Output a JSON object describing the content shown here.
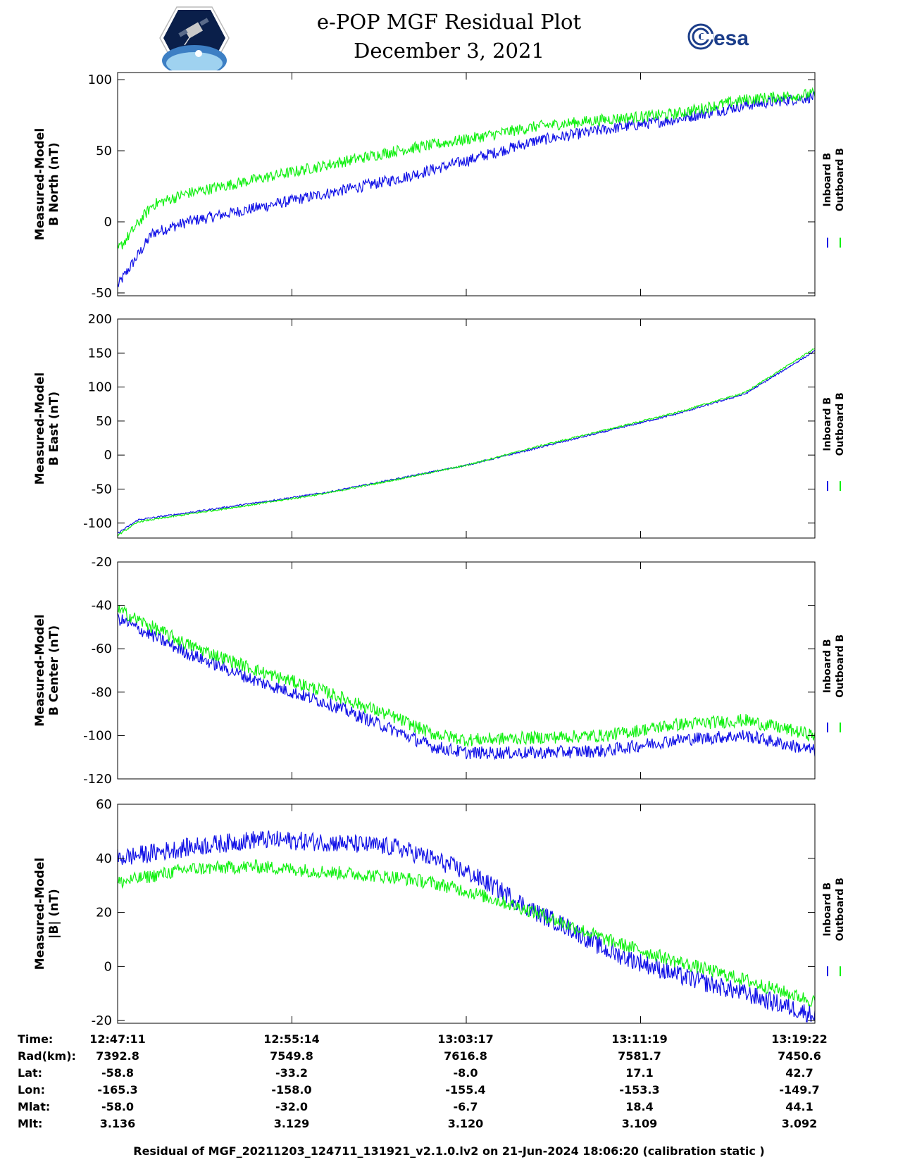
{
  "title": [
    "e-POP MGF Residual Plot",
    "December 3, 2021"
  ],
  "logos": {
    "left": "e-POP CASSIOPE mission logo",
    "right_text": "esa"
  },
  "colors": {
    "inboard": "#1010e6",
    "outboard": "#10f010",
    "axis": "#000000"
  },
  "chart_data": [
    {
      "type": "line",
      "ylabel": [
        "Measured-Model",
        "B North (nT)"
      ],
      "ylim": [
        -52,
        105
      ],
      "yticks": [
        -50,
        0,
        50,
        100
      ],
      "xticks_time": [
        "12:47:11",
        "12:55:14",
        "13:03:17",
        "13:11:19",
        "13:19:22"
      ],
      "legend": [
        "Inboard B",
        "Outboard B"
      ],
      "series": [
        {
          "name": "Inboard B",
          "color": "#1010e6",
          "noise": 4,
          "x": [
            0,
            0.05,
            0.1,
            0.2,
            0.3,
            0.4,
            0.5,
            0.6,
            0.7,
            0.8,
            0.9,
            1.0
          ],
          "y": [
            -45,
            -8,
            0,
            10,
            20,
            30,
            43,
            57,
            65,
            72,
            82,
            88
          ]
        },
        {
          "name": "Outboard B",
          "color": "#10f010",
          "noise": 4,
          "x": [
            0,
            0.05,
            0.1,
            0.2,
            0.3,
            0.4,
            0.5,
            0.6,
            0.7,
            0.8,
            0.9,
            1.0
          ],
          "y": [
            -20,
            12,
            20,
            30,
            40,
            50,
            58,
            67,
            72,
            76,
            86,
            90
          ]
        }
      ]
    },
    {
      "type": "line",
      "ylabel": [
        "Measured-Model",
        "B East (nT)"
      ],
      "ylim": [
        -122,
        200
      ],
      "yticks": [
        -100,
        -50,
        0,
        50,
        100,
        150,
        200
      ],
      "xticks_time": [
        "12:47:11",
        "12:55:14",
        "13:03:17",
        "13:11:19",
        "13:19:22"
      ],
      "legend": [
        "Inboard B",
        "Outboard B"
      ],
      "series": [
        {
          "name": "Inboard B",
          "color": "#1010e6",
          "noise": 1.2,
          "x": [
            0,
            0.03,
            0.1,
            0.2,
            0.3,
            0.4,
            0.5,
            0.6,
            0.7,
            0.8,
            0.9,
            1.0
          ],
          "y": [
            -115,
            -95,
            -85,
            -70,
            -55,
            -35,
            -15,
            10,
            35,
            60,
            90,
            153
          ]
        },
        {
          "name": "Outboard B",
          "color": "#10f010",
          "noise": 1.2,
          "x": [
            0,
            0.03,
            0.1,
            0.2,
            0.3,
            0.4,
            0.5,
            0.6,
            0.7,
            0.8,
            0.9,
            1.0
          ],
          "y": [
            -118,
            -98,
            -87,
            -72,
            -56,
            -36,
            -15,
            12,
            37,
            62,
            92,
            157
          ]
        }
      ]
    },
    {
      "type": "line",
      "ylabel": [
        "Measured-Model",
        "B Center (nT)"
      ],
      "ylim": [
        -120,
        -20
      ],
      "yticks": [
        -120,
        -100,
        -80,
        -60,
        -40,
        -20
      ],
      "xticks_time": [
        "12:47:11",
        "12:55:14",
        "13:03:17",
        "13:11:19",
        "13:19:22"
      ],
      "legend": [
        "Inboard B",
        "Outboard B"
      ],
      "series": [
        {
          "name": "Inboard B",
          "color": "#1010e6",
          "noise": 3,
          "x": [
            0,
            0.1,
            0.2,
            0.3,
            0.4,
            0.45,
            0.5,
            0.6,
            0.7,
            0.8,
            0.9,
            1.0
          ],
          "y": [
            -46,
            -62,
            -75,
            -85,
            -98,
            -105,
            -108,
            -108,
            -107,
            -102,
            -100,
            -107
          ]
        },
        {
          "name": "Outboard B",
          "color": "#10f010",
          "noise": 3,
          "x": [
            0,
            0.1,
            0.2,
            0.3,
            0.4,
            0.45,
            0.5,
            0.6,
            0.7,
            0.8,
            0.9,
            1.0
          ],
          "y": [
            -42,
            -58,
            -70,
            -80,
            -92,
            -99,
            -102,
            -101,
            -100,
            -95,
            -93,
            -100
          ]
        }
      ]
    },
    {
      "type": "line",
      "ylabel": [
        "Measured-Model",
        "|B| (nT)"
      ],
      "ylim": [
        -21,
        60
      ],
      "yticks": [
        -20,
        0,
        20,
        40,
        60
      ],
      "xticks_time": [
        "12:47:11",
        "12:55:14",
        "13:03:17",
        "13:11:19",
        "13:19:22"
      ],
      "legend": [
        "Inboard B",
        "Outboard B"
      ],
      "series": [
        {
          "name": "Inboard B",
          "color": "#1010e6",
          "noise": 3.5,
          "x": [
            0,
            0.1,
            0.2,
            0.3,
            0.4,
            0.45,
            0.5,
            0.55,
            0.6,
            0.65,
            0.7,
            0.8,
            0.9,
            1.0
          ],
          "y": [
            40,
            44,
            47,
            46,
            44,
            40,
            35,
            28,
            20,
            14,
            6,
            -3,
            -10,
            -18
          ]
        },
        {
          "name": "Outboard B",
          "color": "#10f010",
          "noise": 2.5,
          "x": [
            0,
            0.1,
            0.2,
            0.3,
            0.4,
            0.45,
            0.5,
            0.55,
            0.6,
            0.65,
            0.7,
            0.8,
            0.9,
            1.0
          ],
          "y": [
            31,
            36,
            37,
            35,
            33,
            31,
            28,
            24,
            20,
            15,
            10,
            2,
            -5,
            -13
          ]
        }
      ]
    }
  ],
  "info_table": {
    "labels": [
      "Time:",
      "Rad(km):",
      "Lat:",
      "Lon:",
      "Mlat:",
      "Mlt:"
    ],
    "columns": [
      [
        "12:47:11",
        "7392.8",
        "-58.8",
        "-165.3",
        "-58.0",
        "3.136"
      ],
      [
        "12:55:14",
        "7549.8",
        "-33.2",
        "-158.0",
        "-32.0",
        "3.129"
      ],
      [
        "13:03:17",
        "7616.8",
        "-8.0",
        "-155.4",
        "-6.7",
        "3.120"
      ],
      [
        "13:11:19",
        "7581.7",
        "17.1",
        "-153.3",
        "18.4",
        "3.109"
      ],
      [
        "13:19:22",
        "7450.6",
        "42.7",
        "-149.7",
        "44.1",
        "3.092"
      ]
    ]
  },
  "footer": "Residual of MGF_20211203_124711_131921_v2.1.0.lv2 on 21-Jun-2024 18:06:20 (calibration static )"
}
